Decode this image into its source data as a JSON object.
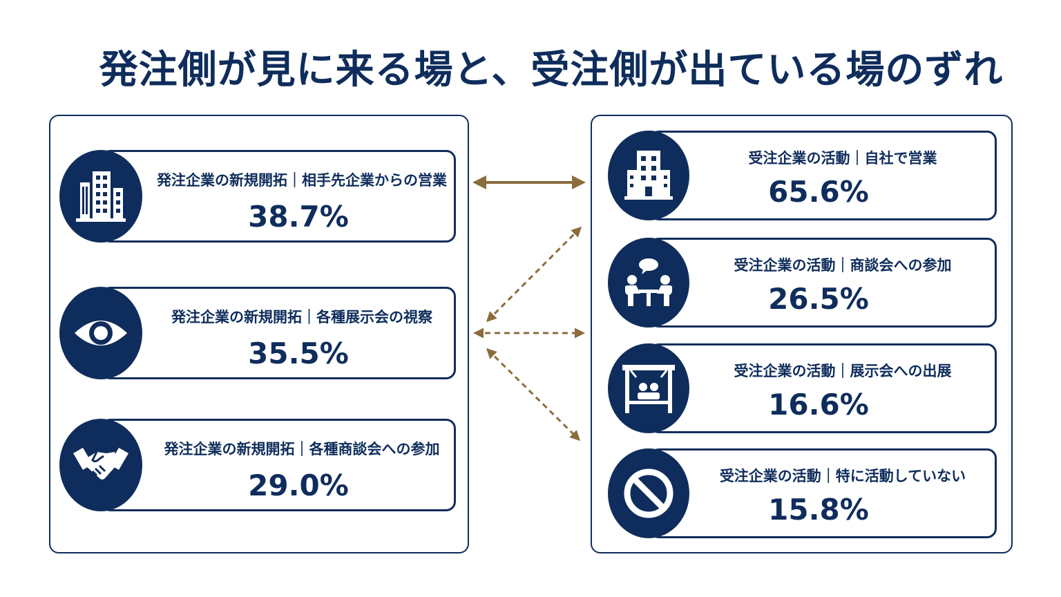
{
  "title": "発注側が見に来る場と、受注側が出ている場のずれ",
  "colors": {
    "navy": "#0f2d5c",
    "arrow": "#8a6d3b"
  },
  "left_items": [
    {
      "label": "発注企業の新規開拓｜相手先企業からの営業",
      "value": "38.7%",
      "icon": "building-icon"
    },
    {
      "label": "発注企業の新規開拓｜各種展示会の視察",
      "value": "35.5%",
      "icon": "eye-icon"
    },
    {
      "label": "発注企業の新規開拓｜各種商談会への参加",
      "value": "29.0%",
      "icon": "handshake-icon"
    }
  ],
  "right_items": [
    {
      "label": "受注企業の活動｜自社で営業",
      "value": "65.6%",
      "icon": "building-icon"
    },
    {
      "label": "受注企業の活動｜商談会への参加",
      "value": "26.5%",
      "icon": "meeting-icon"
    },
    {
      "label": "受注企業の活動｜展示会への出展",
      "value": "16.6%",
      "icon": "booth-icon"
    },
    {
      "label": "受注企業の活動｜特に活動していない",
      "value": "15.8%",
      "icon": "prohibited-icon"
    }
  ]
}
